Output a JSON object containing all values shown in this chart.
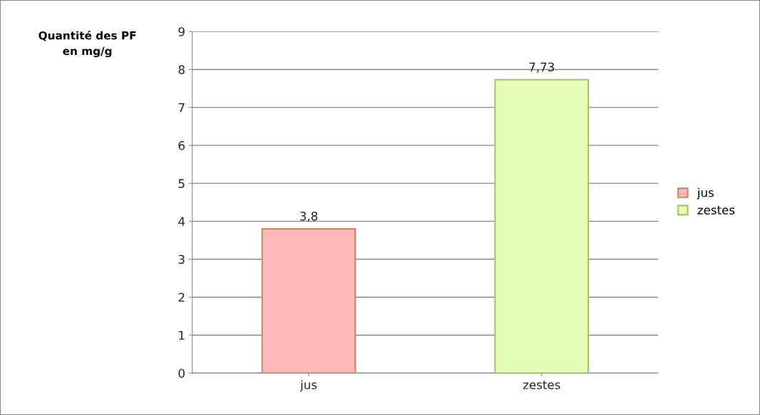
{
  "chart_data": {
    "type": "bar",
    "ylabel": "Quantité des PF\nen mg/g",
    "categories": [
      "jus",
      "zestes"
    ],
    "series": [
      {
        "name": "jus",
        "color": "#ffb8b8",
        "values": [
          3.8,
          null
        ],
        "value_labels": [
          "3,8",
          null
        ]
      },
      {
        "name": "zestes",
        "color": "#e6ffb8",
        "values": [
          null,
          7.73
        ],
        "value_labels": [
          null,
          "7,73"
        ]
      }
    ],
    "ylim": [
      0,
      9
    ],
    "yticks": [
      0,
      1,
      2,
      3,
      4,
      5,
      6,
      7,
      8,
      9
    ],
    "grid": "y",
    "legend": "right"
  }
}
